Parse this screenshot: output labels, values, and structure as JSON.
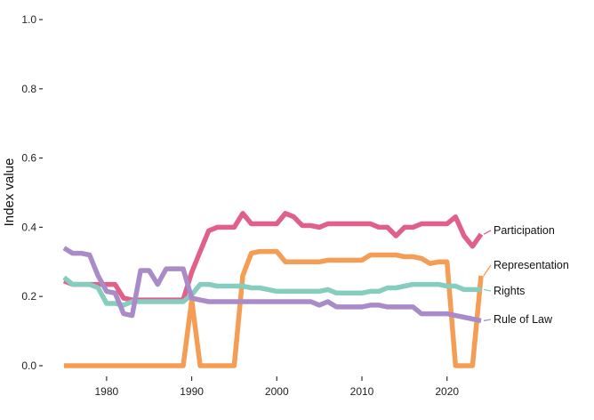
{
  "chart_data": {
    "type": "line",
    "title": "",
    "xlabel": "",
    "ylabel": "Index value",
    "xlim": [
      1975,
      2024
    ],
    "ylim": [
      0,
      1
    ],
    "x_ticks": [
      1980,
      1990,
      2000,
      2010,
      2020
    ],
    "y_ticks": [
      0.0,
      0.2,
      0.4,
      0.6,
      0.8,
      1.0
    ],
    "y_tick_labels": [
      "0.0",
      "0.2",
      "0.4",
      "0.6",
      "0.8",
      "1.0"
    ],
    "grid": false,
    "legend": "direct labels at line ends (right)",
    "x": [
      1975,
      1976,
      1977,
      1978,
      1979,
      1980,
      1981,
      1982,
      1983,
      1984,
      1985,
      1986,
      1987,
      1988,
      1989,
      1990,
      1991,
      1992,
      1993,
      1994,
      1995,
      1996,
      1997,
      1998,
      1999,
      2000,
      2001,
      2002,
      2003,
      2004,
      2005,
      2006,
      2007,
      2008,
      2009,
      2010,
      2011,
      2012,
      2013,
      2014,
      2015,
      2016,
      2017,
      2018,
      2019,
      2020,
      2021,
      2022,
      2023,
      2024
    ],
    "series": [
      {
        "name": "Participation",
        "color": "#e0608a",
        "values": [
          0.245,
          0.235,
          0.235,
          0.235,
          0.235,
          0.235,
          0.235,
          0.195,
          0.19,
          0.19,
          0.19,
          0.19,
          0.19,
          0.19,
          0.19,
          0.27,
          0.33,
          0.39,
          0.4,
          0.4,
          0.4,
          0.44,
          0.41,
          0.41,
          0.41,
          0.41,
          0.44,
          0.43,
          0.405,
          0.405,
          0.4,
          0.41,
          0.41,
          0.41,
          0.41,
          0.41,
          0.41,
          0.4,
          0.4,
          0.375,
          0.4,
          0.4,
          0.41,
          0.41,
          0.41,
          0.41,
          0.43,
          0.375,
          0.345,
          0.38
        ]
      },
      {
        "name": "Representation",
        "color": "#f59d54",
        "values": [
          0,
          0,
          0,
          0,
          0,
          0,
          0,
          0,
          0,
          0,
          0,
          0,
          0,
          0,
          0,
          0.19,
          0,
          0,
          0,
          0,
          0,
          0.26,
          0.325,
          0.33,
          0.33,
          0.33,
          0.3,
          0.3,
          0.3,
          0.3,
          0.3,
          0.305,
          0.305,
          0.305,
          0.305,
          0.305,
          0.32,
          0.32,
          0.32,
          0.32,
          0.315,
          0.315,
          0.31,
          0.295,
          0.3,
          0.3,
          0,
          0,
          0,
          0.26
        ]
      },
      {
        "name": "Rights",
        "color": "#86cdc0",
        "values": [
          0.255,
          0.235,
          0.235,
          0.235,
          0.225,
          0.18,
          0.18,
          0.175,
          0.185,
          0.185,
          0.185,
          0.185,
          0.185,
          0.185,
          0.185,
          0.205,
          0.235,
          0.235,
          0.23,
          0.23,
          0.23,
          0.23,
          0.225,
          0.225,
          0.22,
          0.215,
          0.215,
          0.215,
          0.215,
          0.215,
          0.215,
          0.22,
          0.21,
          0.21,
          0.21,
          0.21,
          0.215,
          0.215,
          0.225,
          0.225,
          0.23,
          0.235,
          0.235,
          0.235,
          0.235,
          0.23,
          0.23,
          0.22,
          0.22,
          0.22
        ]
      },
      {
        "name": "Rule of Law",
        "color": "#a98bc8",
        "values": [
          0.34,
          0.325,
          0.325,
          0.32,
          0.26,
          0.215,
          0.21,
          0.15,
          0.145,
          0.275,
          0.275,
          0.235,
          0.28,
          0.28,
          0.28,
          0.195,
          0.19,
          0.185,
          0.185,
          0.185,
          0.185,
          0.185,
          0.185,
          0.185,
          0.185,
          0.185,
          0.185,
          0.185,
          0.185,
          0.185,
          0.175,
          0.185,
          0.17,
          0.17,
          0.17,
          0.17,
          0.175,
          0.175,
          0.17,
          0.17,
          0.17,
          0.17,
          0.15,
          0.15,
          0.15,
          0.15,
          0.145,
          0.14,
          0.135,
          0.13
        ]
      }
    ]
  }
}
